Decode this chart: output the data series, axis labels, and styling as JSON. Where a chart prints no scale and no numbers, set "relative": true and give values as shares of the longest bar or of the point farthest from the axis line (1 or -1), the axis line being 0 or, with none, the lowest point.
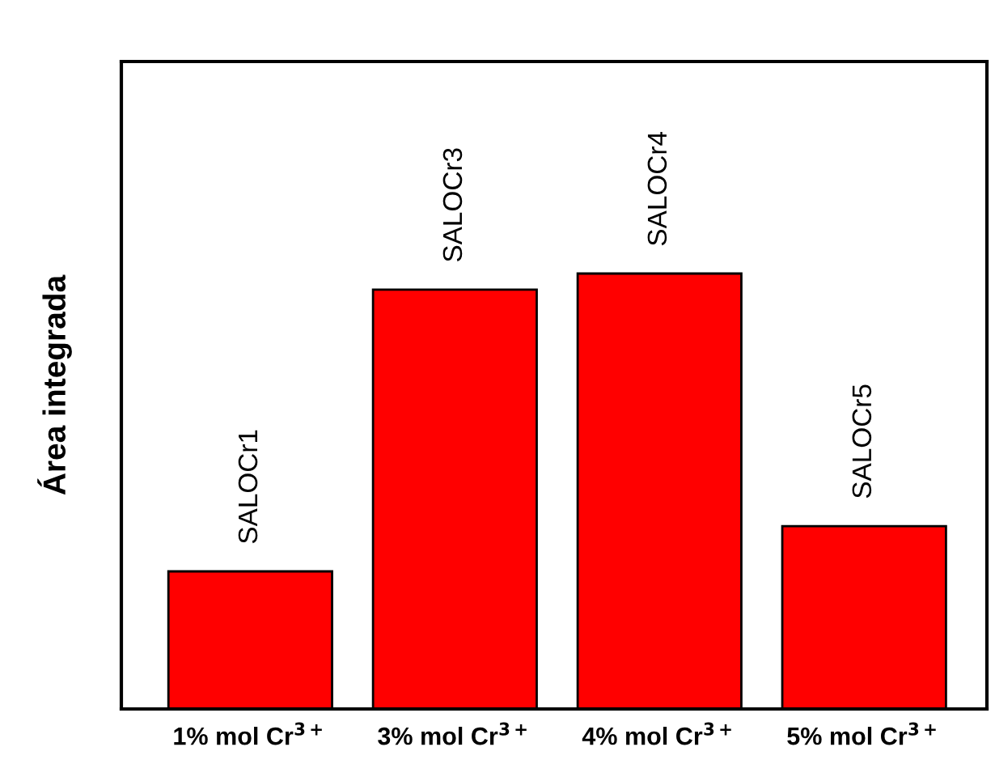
{
  "chart_data": {
    "type": "bar",
    "ylabel": "Área integrada",
    "categories": [
      "1% mol Cr$^{3+}$",
      "3% mol Cr$^{3+}$",
      "4% mol Cr$^{3+}$",
      "5% mol Cr$^{3+}$"
    ],
    "values": [
      0.316,
      0.963,
      1,
      0.42
    ],
    "color": "#ff0000",
    "relative": true,
    "grid": false,
    "legend": false,
    "annotations": [
      {
        "text": "SALOCr1",
        "x": "1% mol Cr$^{3+}$",
        "y": 0.316
      },
      {
        "text": "SALOCr3",
        "x": "3% mol Cr$^{3+}$",
        "y": 0.963
      },
      {
        "text": "SALOCr4",
        "x": "4% mol Cr$^{3+}$",
        "y": 1
      },
      {
        "text": "SALOCr5",
        "x": "5% mol Cr$^{3+}$",
        "y": 0.42
      }
    ]
  }
}
